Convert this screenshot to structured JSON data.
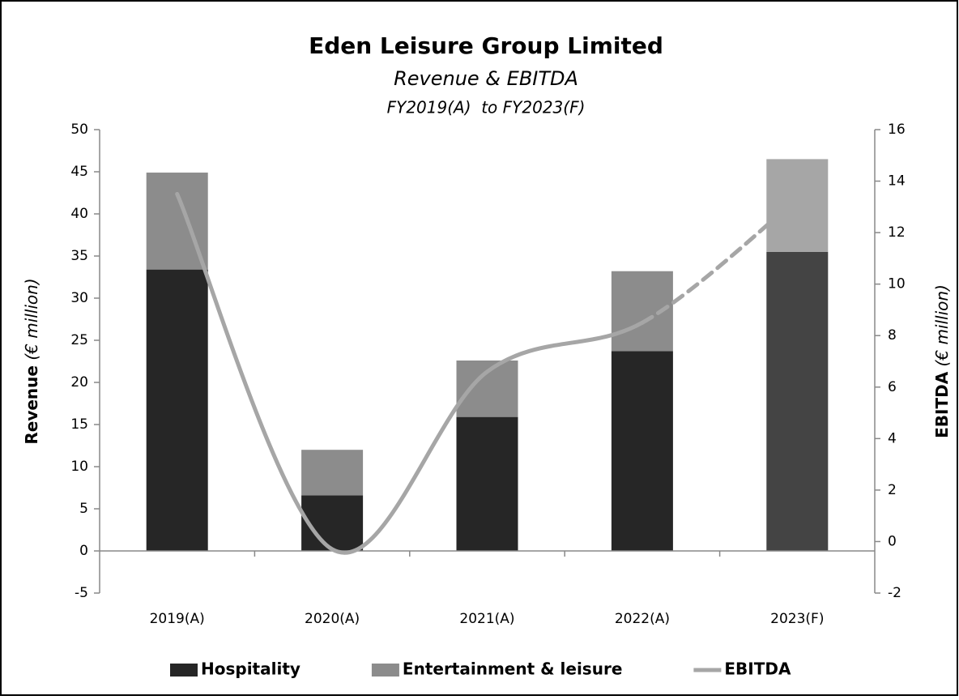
{
  "chart_data": {
    "type": "bar_line_combo",
    "title": "Eden Leisure Group Limited",
    "subtitle": "Revenue & EBITDA",
    "period": "FY2019(A)  to FY2023(F)",
    "y_label": {
      "text": "Revenue",
      "unit": "(€ million)"
    },
    "y2_label": {
      "text": "EBITDA",
      "unit": "(€ million)"
    },
    "categories": [
      "2019(A)",
      "2020(A)",
      "2021(A)",
      "2022(A)",
      "2023(F)"
    ],
    "ylim": [
      -5,
      50
    ],
    "yticks": [
      -5,
      0,
      5,
      10,
      15,
      20,
      25,
      30,
      35,
      40,
      45,
      50
    ],
    "y2lim": [
      -2,
      16
    ],
    "y2ticks": [
      -2,
      0,
      2,
      4,
      6,
      8,
      10,
      12,
      14,
      16
    ],
    "series": [
      {
        "name": "Hospitality",
        "type": "bar",
        "color": "#262626",
        "point_colors": [
          "#262626",
          "#262626",
          "#262626",
          "#262626",
          "#444444"
        ],
        "values": [
          33.4,
          6.6,
          15.9,
          23.7,
          35.5
        ]
      },
      {
        "name": "Entertainment & leisure",
        "type": "bar",
        "color": "#8c8c8c",
        "point_colors": [
          "#8c8c8c",
          "#8c8c8c",
          "#8c8c8c",
          "#8c8c8c",
          "#a6a6a6"
        ],
        "values": [
          11.5,
          5.4,
          6.7,
          9.5,
          11.0
        ]
      },
      {
        "name": "EBITDA",
        "type": "line",
        "axis": "y2",
        "color": "#a6a6a6",
        "dashed_from_index": 3,
        "values": [
          13.5,
          -0.3,
          6.6,
          8.5,
          13.3
        ]
      }
    ]
  }
}
